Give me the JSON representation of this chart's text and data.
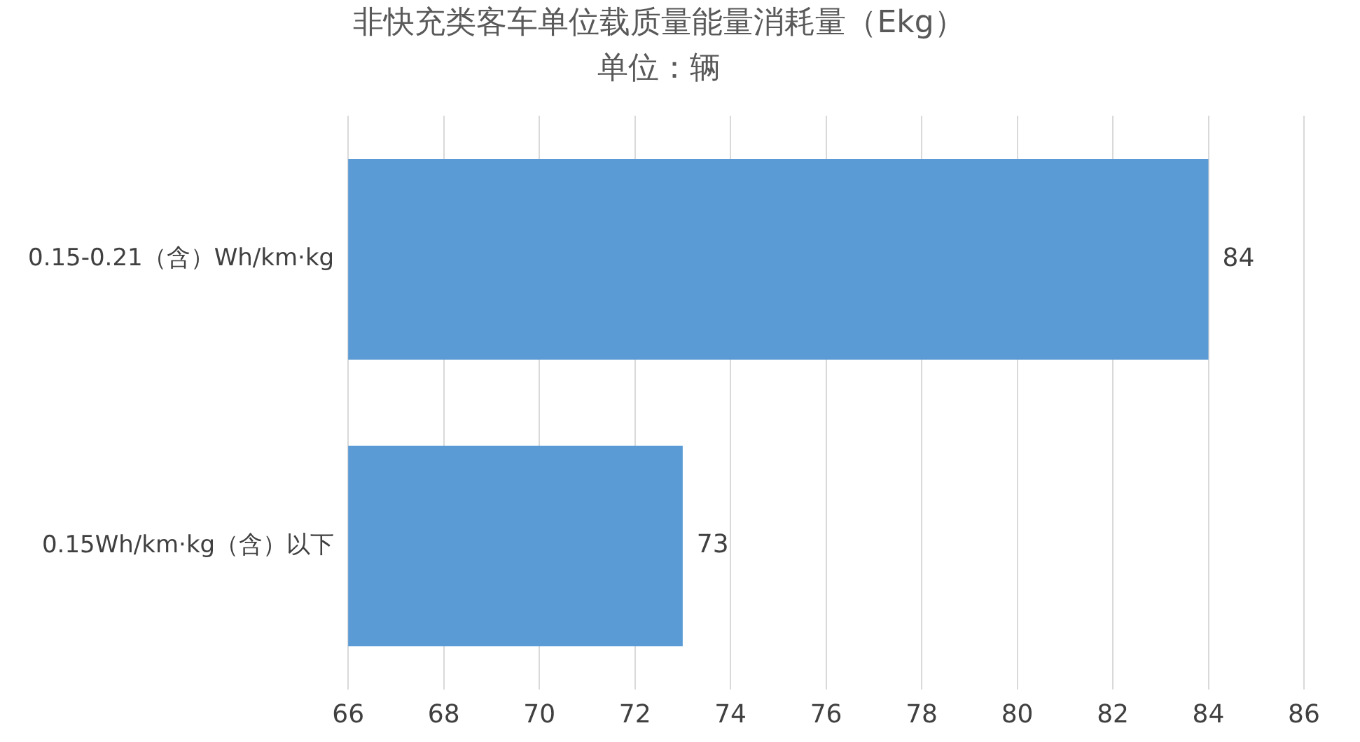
{
  "chart_data": {
    "type": "bar",
    "orientation": "horizontal",
    "title": "非快充类客车单位载质量能量消耗量（Ekg）",
    "subtitle": "单位：辆",
    "categories": [
      "0.15-0.21（含）Wh/km·kg",
      "0.15Wh/km·kg（含）以下"
    ],
    "values": [
      84,
      73
    ],
    "color": "#5b9bd5",
    "xlim": [
      66,
      86
    ],
    "xticks": [
      66,
      68,
      70,
      72,
      74,
      76,
      78,
      80,
      82,
      84,
      86
    ],
    "grid": "x",
    "data_labels": true
  }
}
